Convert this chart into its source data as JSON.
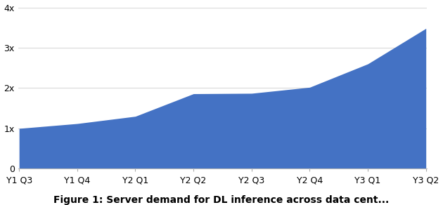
{
  "x_labels": [
    "Y1 Q3",
    "Y1 Q4",
    "Y2 Q1",
    "Y2 Q2",
    "Y2 Q3",
    "Y2 Q4",
    "Y3 Q1",
    "Y3 Q2"
  ],
  "y_values": [
    1.0,
    1.12,
    1.3,
    1.86,
    1.87,
    2.02,
    2.6,
    3.48
  ],
  "fill_color": "#4472C4",
  "line_color": "#4472C4",
  "background_color": "#ffffff",
  "ylim": [
    0,
    4
  ],
  "yticks": [
    0,
    1,
    2,
    3,
    4
  ],
  "ytick_labels": [
    "0",
    "1x",
    "2x",
    "3x",
    "4x"
  ],
  "grid_color": "#d9d9d9",
  "caption": "Figure 1: Server demand for DL inference across data cent...",
  "caption_fontsize": 10,
  "tick_fontsize": 9,
  "figsize": [
    6.3,
    2.92
  ],
  "dpi": 100
}
